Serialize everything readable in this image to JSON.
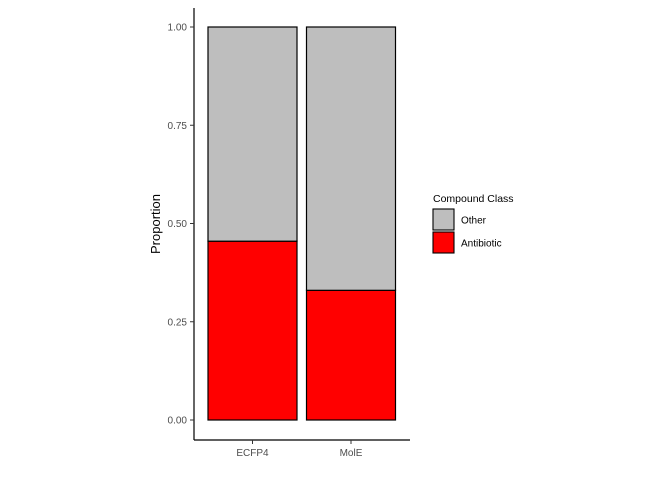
{
  "chart_data": {
    "type": "bar",
    "stacked": true,
    "categories": [
      "ECFP4",
      "MolE"
    ],
    "series": [
      {
        "name": "Antibiotic",
        "color": "#ff0000",
        "values": [
          0.455,
          0.33
        ]
      },
      {
        "name": "Other",
        "color": "#bebebe",
        "values": [
          0.545,
          0.67
        ]
      }
    ],
    "xlabel": "",
    "ylabel": "Proportion",
    "ylim": [
      0,
      1
    ],
    "yticks": [
      0.0,
      0.25,
      0.5,
      0.75,
      1.0
    ],
    "ytick_labels": [
      "0.00",
      "0.25",
      "0.50",
      "0.75",
      "1.00"
    ],
    "grid": false,
    "legend": {
      "title": "Compound Class",
      "placement": "right",
      "entries": [
        "Other",
        "Antibiotic"
      ]
    }
  }
}
